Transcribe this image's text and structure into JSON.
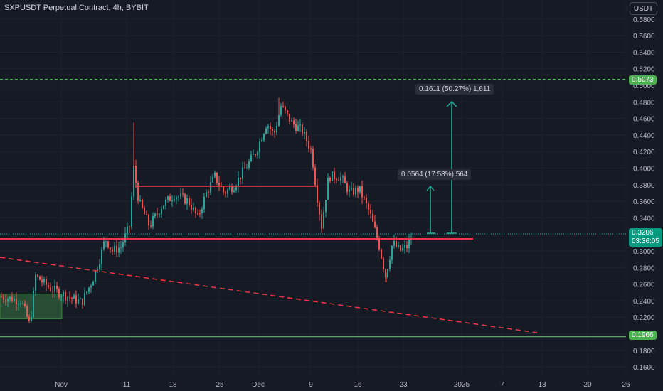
{
  "header": {
    "title": "SXPUSDT Perpetual Contract, 4h, BYBIT",
    "currency": "USDT"
  },
  "colors": {
    "background": "#161a25",
    "up": "#26a69a",
    "down": "#ef5350",
    "resistance": "#f23645",
    "support_green": "#4caf50",
    "measure": "#22ab94"
  },
  "chart_data": {
    "type": "candlestick",
    "y_axis": {
      "ticks": [
        "0.5800",
        "0.5600",
        "0.5400",
        "0.5200",
        "0.5000",
        "0.4800",
        "0.4600",
        "0.4400",
        "0.4200",
        "0.4000",
        "0.3800",
        "0.3600",
        "0.3400",
        "0.3200",
        "0.3000",
        "0.2800",
        "0.2600",
        "0.2400",
        "0.2200",
        "0.2000",
        "0.1800",
        "0.1600"
      ],
      "ylim": [
        0.15,
        0.59
      ]
    },
    "x_axis": {
      "ticks": [
        "Nov",
        "11",
        "18",
        "25",
        "Dec",
        "9",
        "16",
        "23",
        "2025",
        "7",
        "13",
        "20",
        "26"
      ]
    },
    "price_path": [
      [
        0,
        0.245
      ],
      [
        30,
        0.24
      ],
      [
        42,
        0.21
      ],
      [
        50,
        0.27
      ],
      [
        70,
        0.255
      ],
      [
        95,
        0.245
      ],
      [
        115,
        0.238
      ],
      [
        130,
        0.265
      ],
      [
        140,
        0.29
      ],
      [
        148,
        0.315
      ],
      [
        158,
        0.3
      ],
      [
        170,
        0.305
      ],
      [
        182,
        0.33
      ],
      [
        188,
        0.4
      ],
      [
        195,
        0.36
      ],
      [
        210,
        0.33
      ],
      [
        228,
        0.355
      ],
      [
        245,
        0.368
      ],
      [
        265,
        0.36
      ],
      [
        278,
        0.34
      ],
      [
        290,
        0.37
      ],
      [
        302,
        0.39
      ],
      [
        315,
        0.37
      ],
      [
        330,
        0.38
      ],
      [
        345,
        0.4
      ],
      [
        360,
        0.42
      ],
      [
        375,
        0.455
      ],
      [
        385,
        0.44
      ],
      [
        395,
        0.475
      ],
      [
        410,
        0.455
      ],
      [
        425,
        0.445
      ],
      [
        438,
        0.42
      ],
      [
        445,
        0.37
      ],
      [
        452,
        0.33
      ],
      [
        462,
        0.39
      ],
      [
        478,
        0.39
      ],
      [
        492,
        0.37
      ],
      [
        505,
        0.375
      ],
      [
        520,
        0.345
      ],
      [
        532,
        0.31
      ],
      [
        542,
        0.27
      ],
      [
        552,
        0.31
      ],
      [
        562,
        0.3
      ],
      [
        572,
        0.305
      ],
      [
        580,
        0.32
      ]
    ],
    "last_price": {
      "label": "0.3206",
      "countdown": "03:36:05"
    },
    "levels": {
      "top_dashed": "0.5073",
      "bottom_green": "0.1966"
    },
    "measure_labels": [
      "0.1611 (50.27%) 1,611",
      "0.0564 (17.58%) 564"
    ]
  }
}
